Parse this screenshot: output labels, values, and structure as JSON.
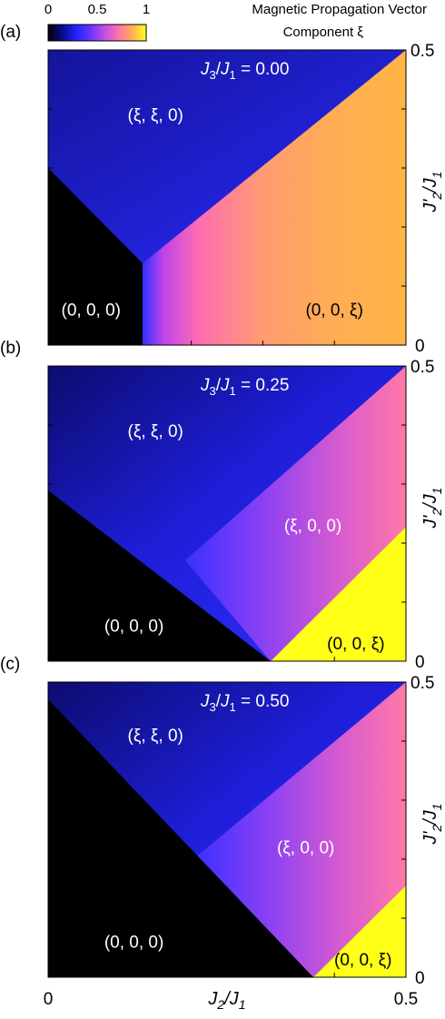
{
  "colorbar": {
    "ticks": [
      "0",
      "0.5",
      "1"
    ],
    "tick_values": [
      0,
      0.5,
      1
    ],
    "title_line1": "Magnetic Propagation Vector",
    "title_line2": "Component ξ",
    "colormap": [
      "#000000",
      "#0a0a8c",
      "#2323ff",
      "#6a33ff",
      "#c04ee8",
      "#ff70b0",
      "#ffb050",
      "#ffff20"
    ]
  },
  "axes": {
    "xlabel": "J2/J1",
    "ylabel": "J2'/J1",
    "x_ticks": [
      "0",
      "0.5"
    ],
    "y_ticks": [
      "0",
      "0.5"
    ],
    "xlim": [
      0,
      0.5
    ],
    "ylim": [
      0,
      0.5
    ]
  },
  "chart_data": [
    {
      "type": "heatmap",
      "panel_label": "(a)",
      "title": "J3/J1 = 0.00",
      "xlim": [
        0,
        0.5
      ],
      "ylim": [
        0,
        0.5
      ],
      "colorbar_range": [
        0,
        1
      ],
      "phases": [
        {
          "label": "(ξ, ξ, 0)",
          "x": 0.15,
          "y": 0.38,
          "label_color": "#ffffff"
        },
        {
          "label": "(0, 0, 0)",
          "x": 0.06,
          "y": 0.05,
          "label_color": "#ffffff"
        },
        {
          "label": "(0, 0, ξ)",
          "x": 0.4,
          "y": 0.05,
          "label_color": "#000000"
        }
      ],
      "boundaries": {
        "black_upper": [
          [
            0,
            0.2
          ],
          [
            0.125,
            0.125
          ],
          [
            0.125,
            0
          ]
        ],
        "axial_upper": [
          [
            0.125,
            0
          ],
          [
            0.125,
            0.125
          ],
          [
            0.5,
            0.5
          ]
        ]
      },
      "xi_ranges": {
        "blue_region": [
          0.15,
          0.3
        ],
        "axial_region": [
          0.45,
          0.7
        ]
      }
    },
    {
      "type": "heatmap",
      "panel_label": "(b)",
      "title": "J3/J1 = 0.25",
      "xlim": [
        0,
        0.5
      ],
      "ylim": [
        0,
        0.5
      ],
      "colorbar_range": [
        0,
        1
      ],
      "phases": [
        {
          "label": "(ξ, ξ, 0)",
          "x": 0.15,
          "y": 0.38,
          "label_color": "#ffffff"
        },
        {
          "label": "(ξ, 0, 0)",
          "x": 0.37,
          "y": 0.22,
          "label_color": "#ffffff"
        },
        {
          "label": "(0, 0, 0)",
          "x": 0.12,
          "y": 0.05,
          "label_color": "#ffffff"
        },
        {
          "label": "(0, 0, ξ)",
          "x": 0.43,
          "y": 0.02,
          "label_color": "#000000"
        }
      ],
      "boundaries": {
        "black_upper": [
          [
            0,
            0.32
          ],
          [
            0.31,
            0
          ]
        ],
        "xi00_lower": [
          [
            0.19,
            0.17
          ],
          [
            0.31,
            0
          ]
        ],
        "xi00_upper": [
          [
            0.19,
            0.17
          ],
          [
            0.5,
            0.5
          ]
        ],
        "yellow_upper": [
          [
            0.31,
            0
          ],
          [
            0.5,
            0.2
          ]
        ]
      },
      "xi_ranges": {
        "blue_region": [
          0.1,
          0.3
        ],
        "xi00_region": [
          0.3,
          0.6
        ],
        "yellow_region": [
          0.95,
          1.0
        ]
      }
    },
    {
      "type": "heatmap",
      "panel_label": "(c)",
      "title": "J3/J1 = 0.50",
      "xlim": [
        0,
        0.5
      ],
      "ylim": [
        0,
        0.5
      ],
      "colorbar_range": [
        0,
        1
      ],
      "phases": [
        {
          "label": "(ξ, ξ, 0)",
          "x": 0.15,
          "y": 0.4,
          "label_color": "#ffffff"
        },
        {
          "label": "(ξ, 0, 0)",
          "x": 0.36,
          "y": 0.21,
          "label_color": "#ffffff"
        },
        {
          "label": "(0, 0, 0)",
          "x": 0.12,
          "y": 0.05,
          "label_color": "#ffffff"
        },
        {
          "label": "(0, 0, ξ)",
          "x": 0.44,
          "y": 0.02,
          "label_color": "#000000"
        }
      ],
      "boundaries": {
        "black_upper": [
          [
            0,
            0.47
          ],
          [
            0.36,
            0
          ]
        ],
        "xi00_lower": [
          [
            0.2,
            0.2
          ],
          [
            0.36,
            0
          ]
        ],
        "xi00_upper": [
          [
            0.2,
            0.2
          ],
          [
            0.5,
            0.5
          ]
        ],
        "yellow_upper": [
          [
            0.36,
            0
          ],
          [
            0.5,
            0.16
          ]
        ]
      },
      "xi_ranges": {
        "blue_region": [
          0.05,
          0.3
        ],
        "xi00_region": [
          0.3,
          0.6
        ],
        "yellow_region": [
          0.95,
          1.0
        ]
      }
    }
  ]
}
